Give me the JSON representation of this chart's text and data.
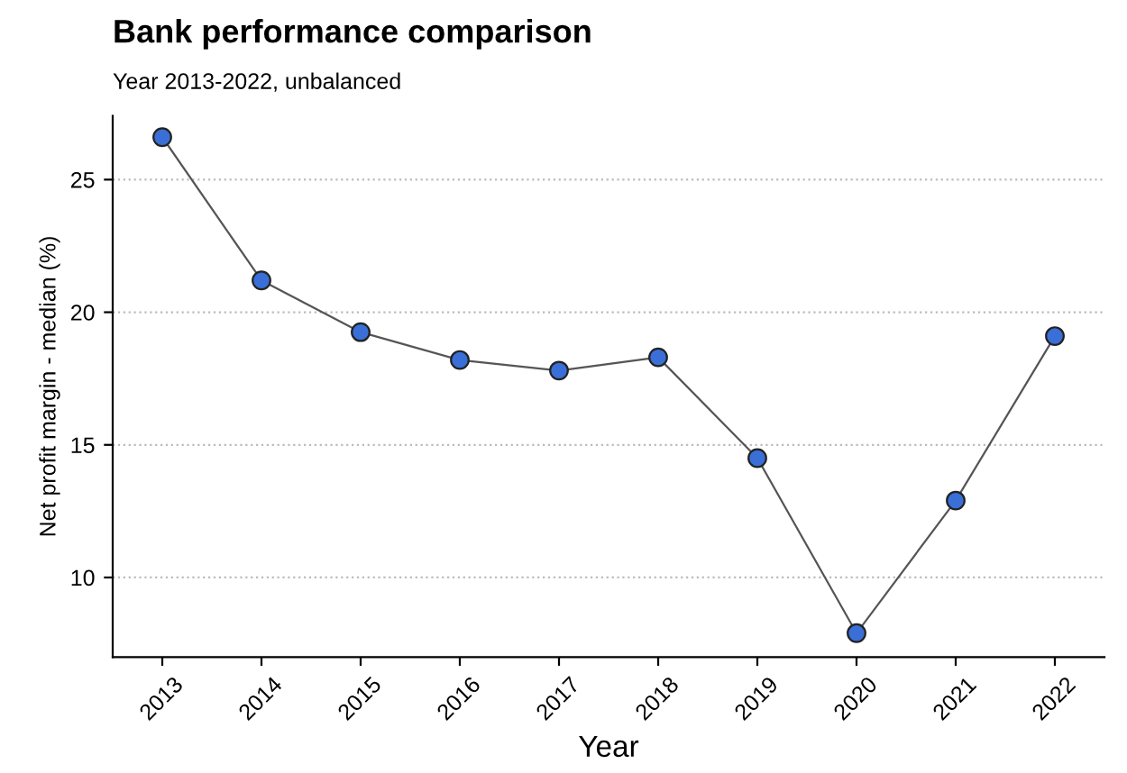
{
  "chart_data": {
    "type": "line",
    "title": "Bank performance comparison",
    "subtitle": "Year 2013-2022, unbalanced",
    "xlabel": "Year",
    "ylabel": "Net profit margin - median (%)",
    "categories": [
      "2013",
      "2014",
      "2015",
      "2016",
      "2017",
      "2018",
      "2019",
      "2020",
      "2021",
      "2022"
    ],
    "series": [
      {
        "color": "#3a6fd8",
        "values": [
          26.6,
          21.2,
          19.25,
          18.2,
          17.8,
          18.3,
          14.5,
          7.9,
          12.9,
          19.1
        ]
      }
    ],
    "ylim": [
      7.0,
      27.4
    ],
    "yticks": [
      10,
      15,
      20,
      25
    ],
    "grid": "y",
    "marker": "circle",
    "line_style": "solid",
    "legend": false
  }
}
